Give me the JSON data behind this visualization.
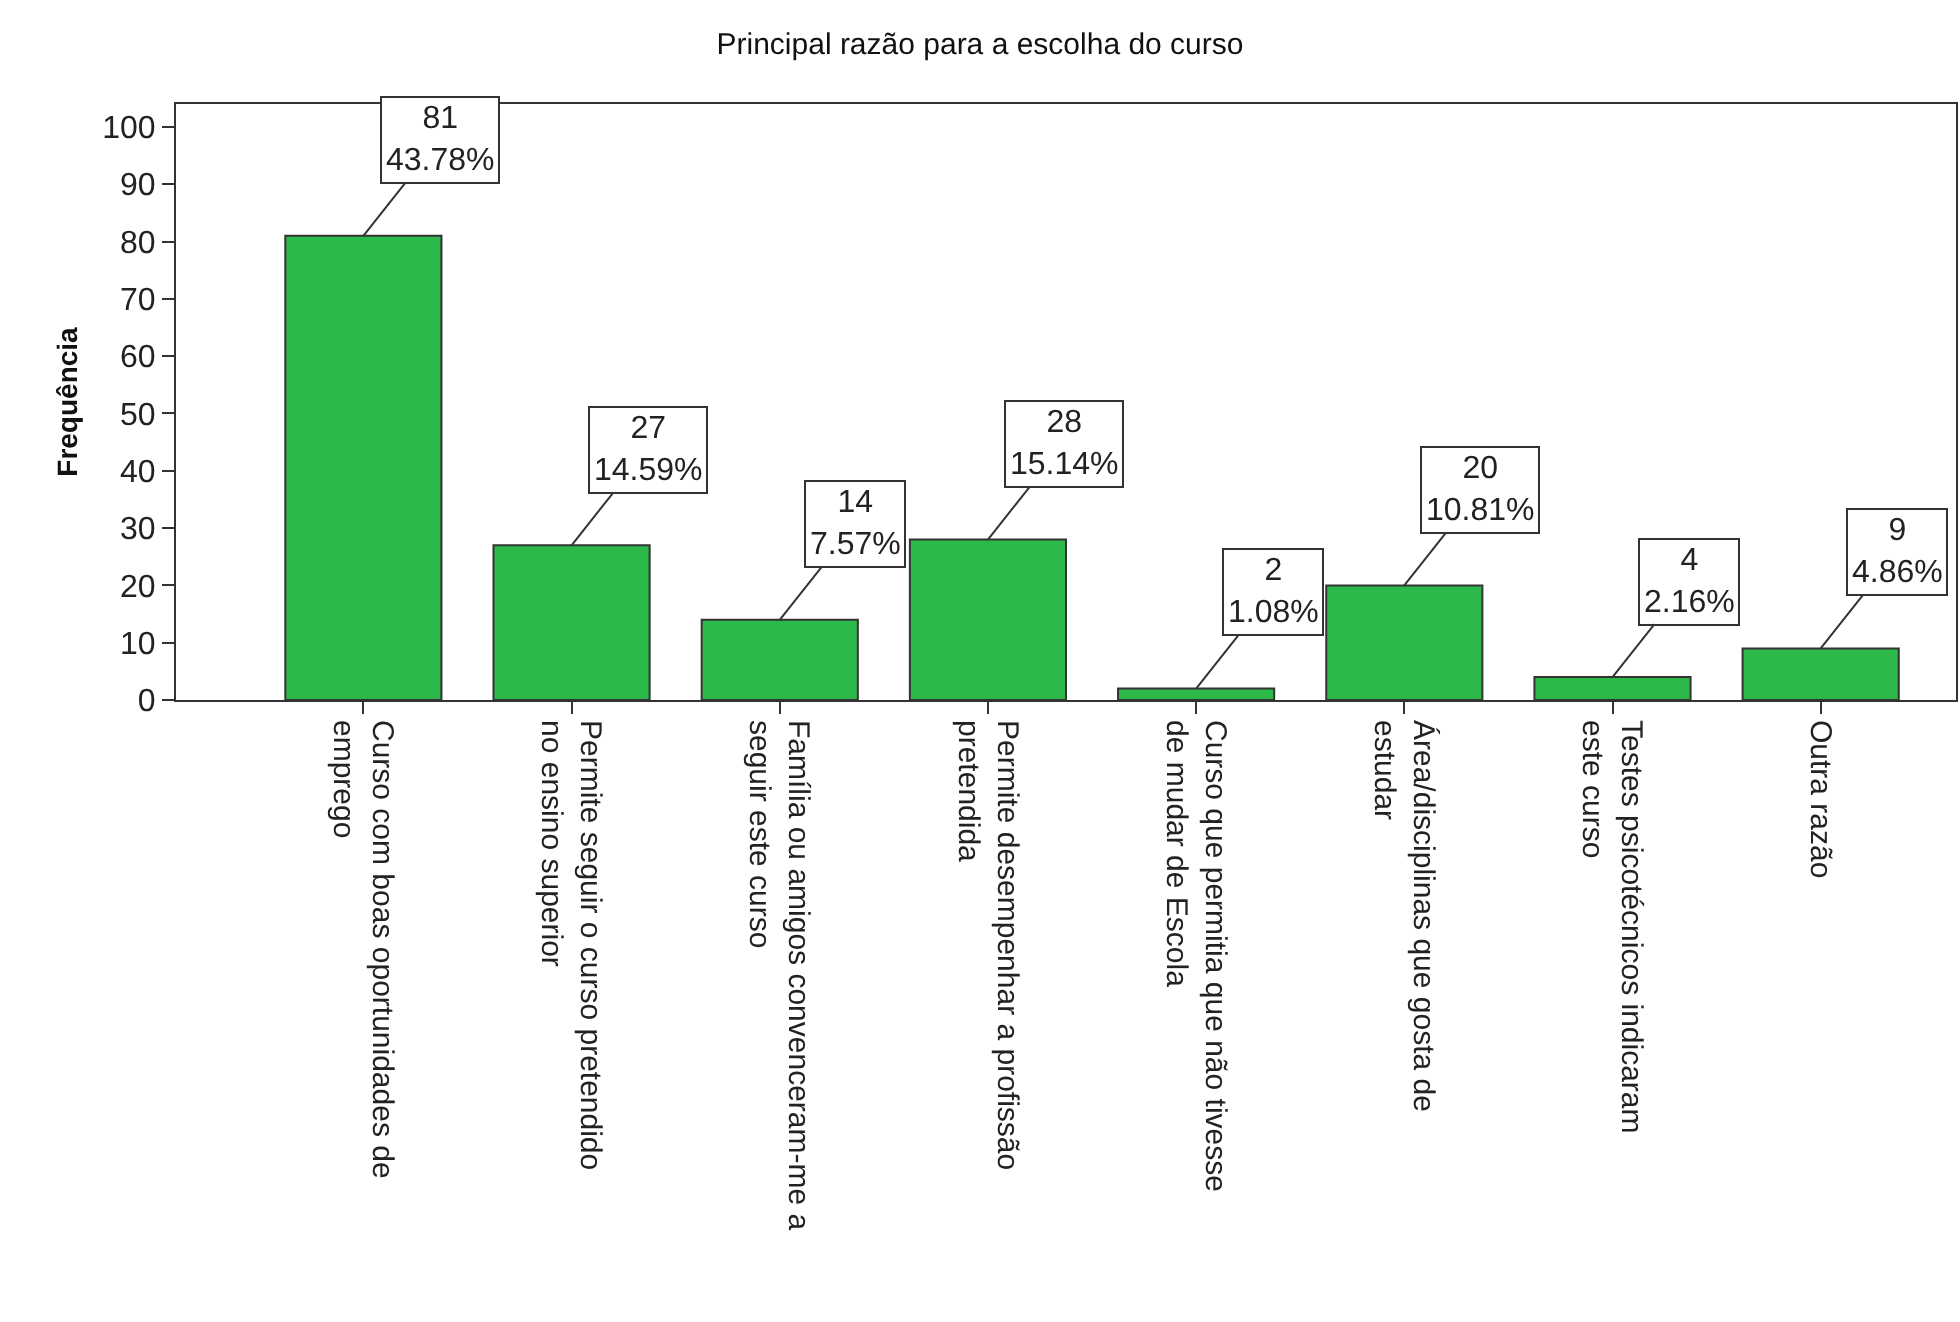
{
  "chart_data": {
    "type": "bar",
    "title": "Principal razão para a escolha do curso",
    "ylabel": "Frequência",
    "categories": [
      "Curso com boas oportunidades de emprego",
      "Permite seguir o curso pretendido no ensino superior",
      "Família ou amigos convenceram-me a seguir este curso",
      "Permite desempenhar a profissão pretendida",
      "Curso que permitia que não tivesse de mudar de Escola",
      "Área/disciplinas que gosta de estudar",
      "Testes psicotécnicos indicaram este curso",
      "Outra razão"
    ],
    "values": [
      81,
      27,
      14,
      28,
      2,
      20,
      4,
      9
    ],
    "value_labels": [
      "81\n43.78%",
      "27\n14.59%",
      "14\n7.57%",
      "28\n15.14%",
      "2\n1.08%",
      "20\n10.81%",
      "4\n2.16%",
      "9\n4.86%"
    ],
    "color": "#2db84a",
    "ylim": [
      0,
      104
    ],
    "yticks": [
      0,
      10,
      20,
      30,
      40,
      50,
      60,
      70,
      80,
      90,
      100
    ]
  }
}
